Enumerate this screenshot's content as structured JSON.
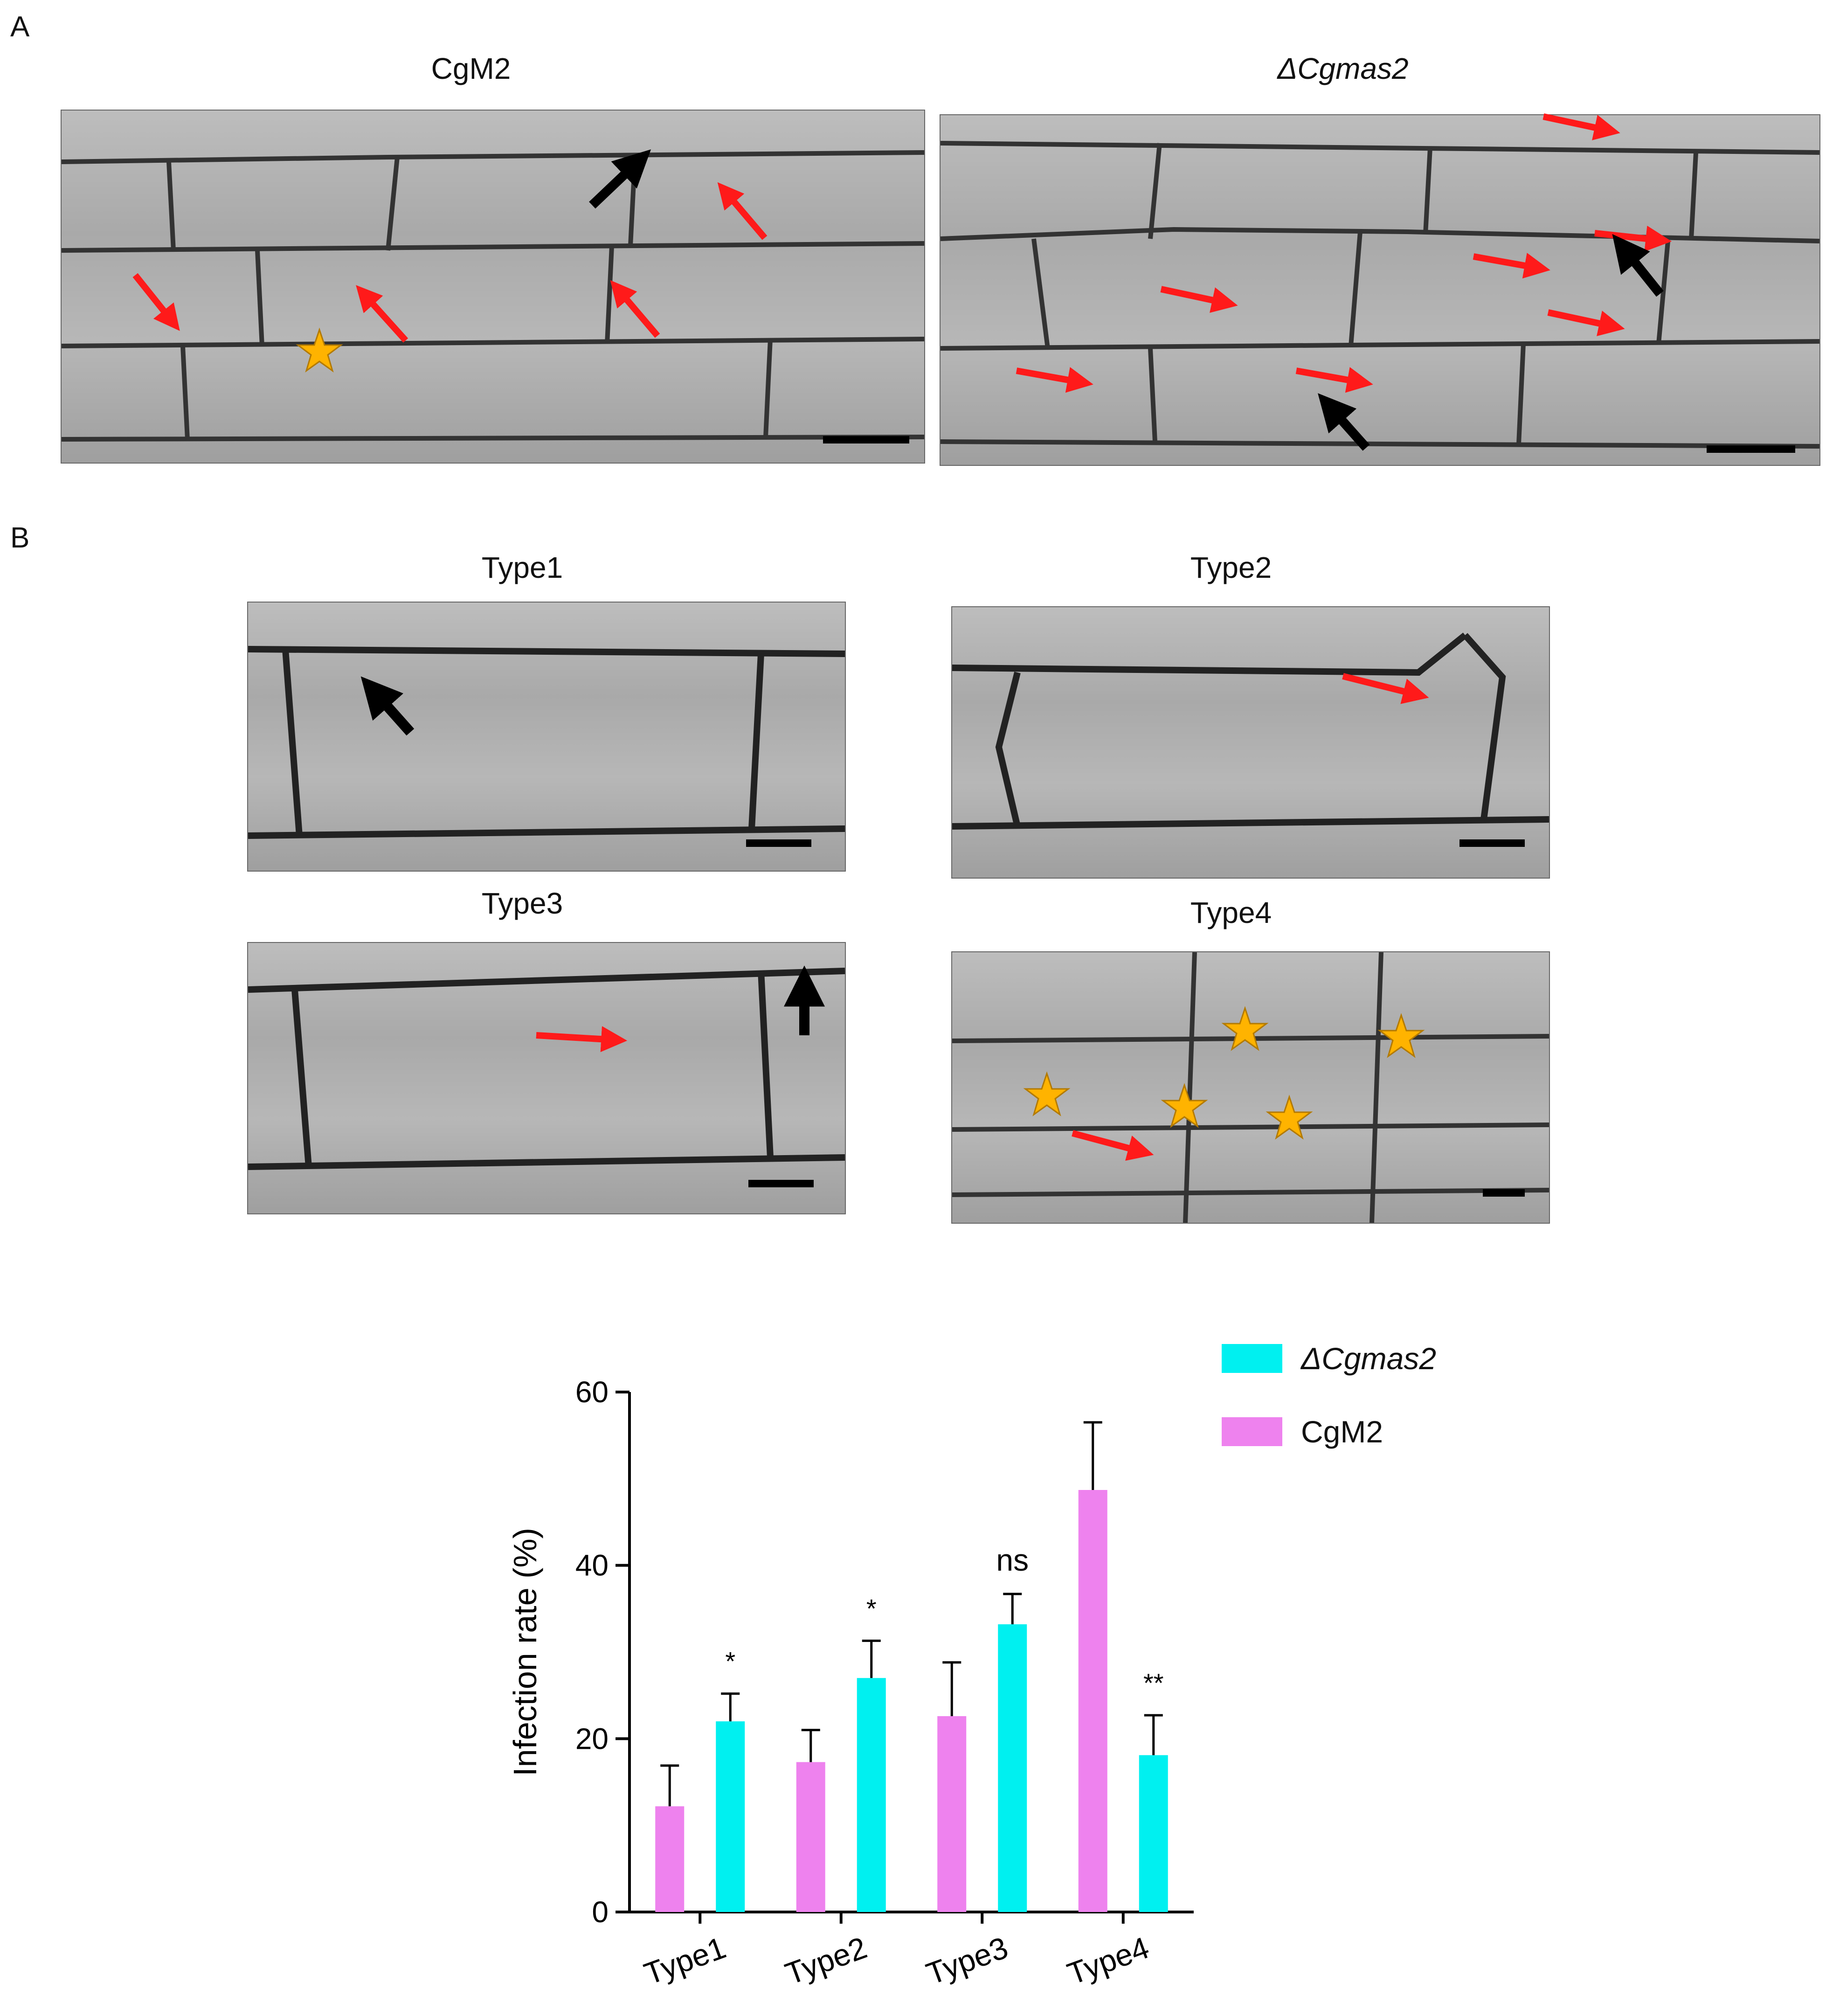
{
  "panels": {
    "A": {
      "letter": "A",
      "images": [
        {
          "title": "CgM2",
          "italic": false
        },
        {
          "title": "ΔCgmas2",
          "italic": true
        }
      ]
    },
    "B": {
      "letter": "B",
      "images": [
        {
          "title": "Type1"
        },
        {
          "title": "Type2"
        },
        {
          "title": "Type3"
        },
        {
          "title": "Type4"
        }
      ]
    }
  },
  "colors": {
    "cgm2": "#ee82ee",
    "delta": "#00f0f0",
    "red_arrow": "#ff1a1a",
    "black_arrow": "#000000",
    "star": "#ffb300"
  },
  "icons": [
    "red-arrow-icon",
    "black-arrow-icon",
    "star-icon"
  ],
  "chart_data": {
    "type": "bar",
    "categories": [
      "Type1",
      "Type2",
      "Type3",
      "Type4"
    ],
    "series": [
      {
        "name": "CgM2",
        "values": [
          12.2,
          17.3,
          22.6,
          48.7
        ],
        "errors": [
          4.7,
          3.7,
          6.2,
          7.8
        ]
      },
      {
        "name": "ΔCgmas2",
        "values": [
          22.0,
          27.0,
          33.2,
          18.1
        ],
        "errors": [
          3.2,
          4.3,
          3.5,
          4.6
        ]
      }
    ],
    "significance": [
      "*",
      "*",
      "ns",
      "**"
    ],
    "ylabel": "Infection rate (%)",
    "xlabel": "",
    "ylim": [
      0,
      60
    ],
    "yticks": [
      0,
      20,
      40,
      60
    ],
    "legend": [
      {
        "label": "ΔCgmas2",
        "italic": true
      },
      {
        "label": "CgM2",
        "italic": false
      }
    ],
    "legend_position": "top-right",
    "grid": false
  }
}
